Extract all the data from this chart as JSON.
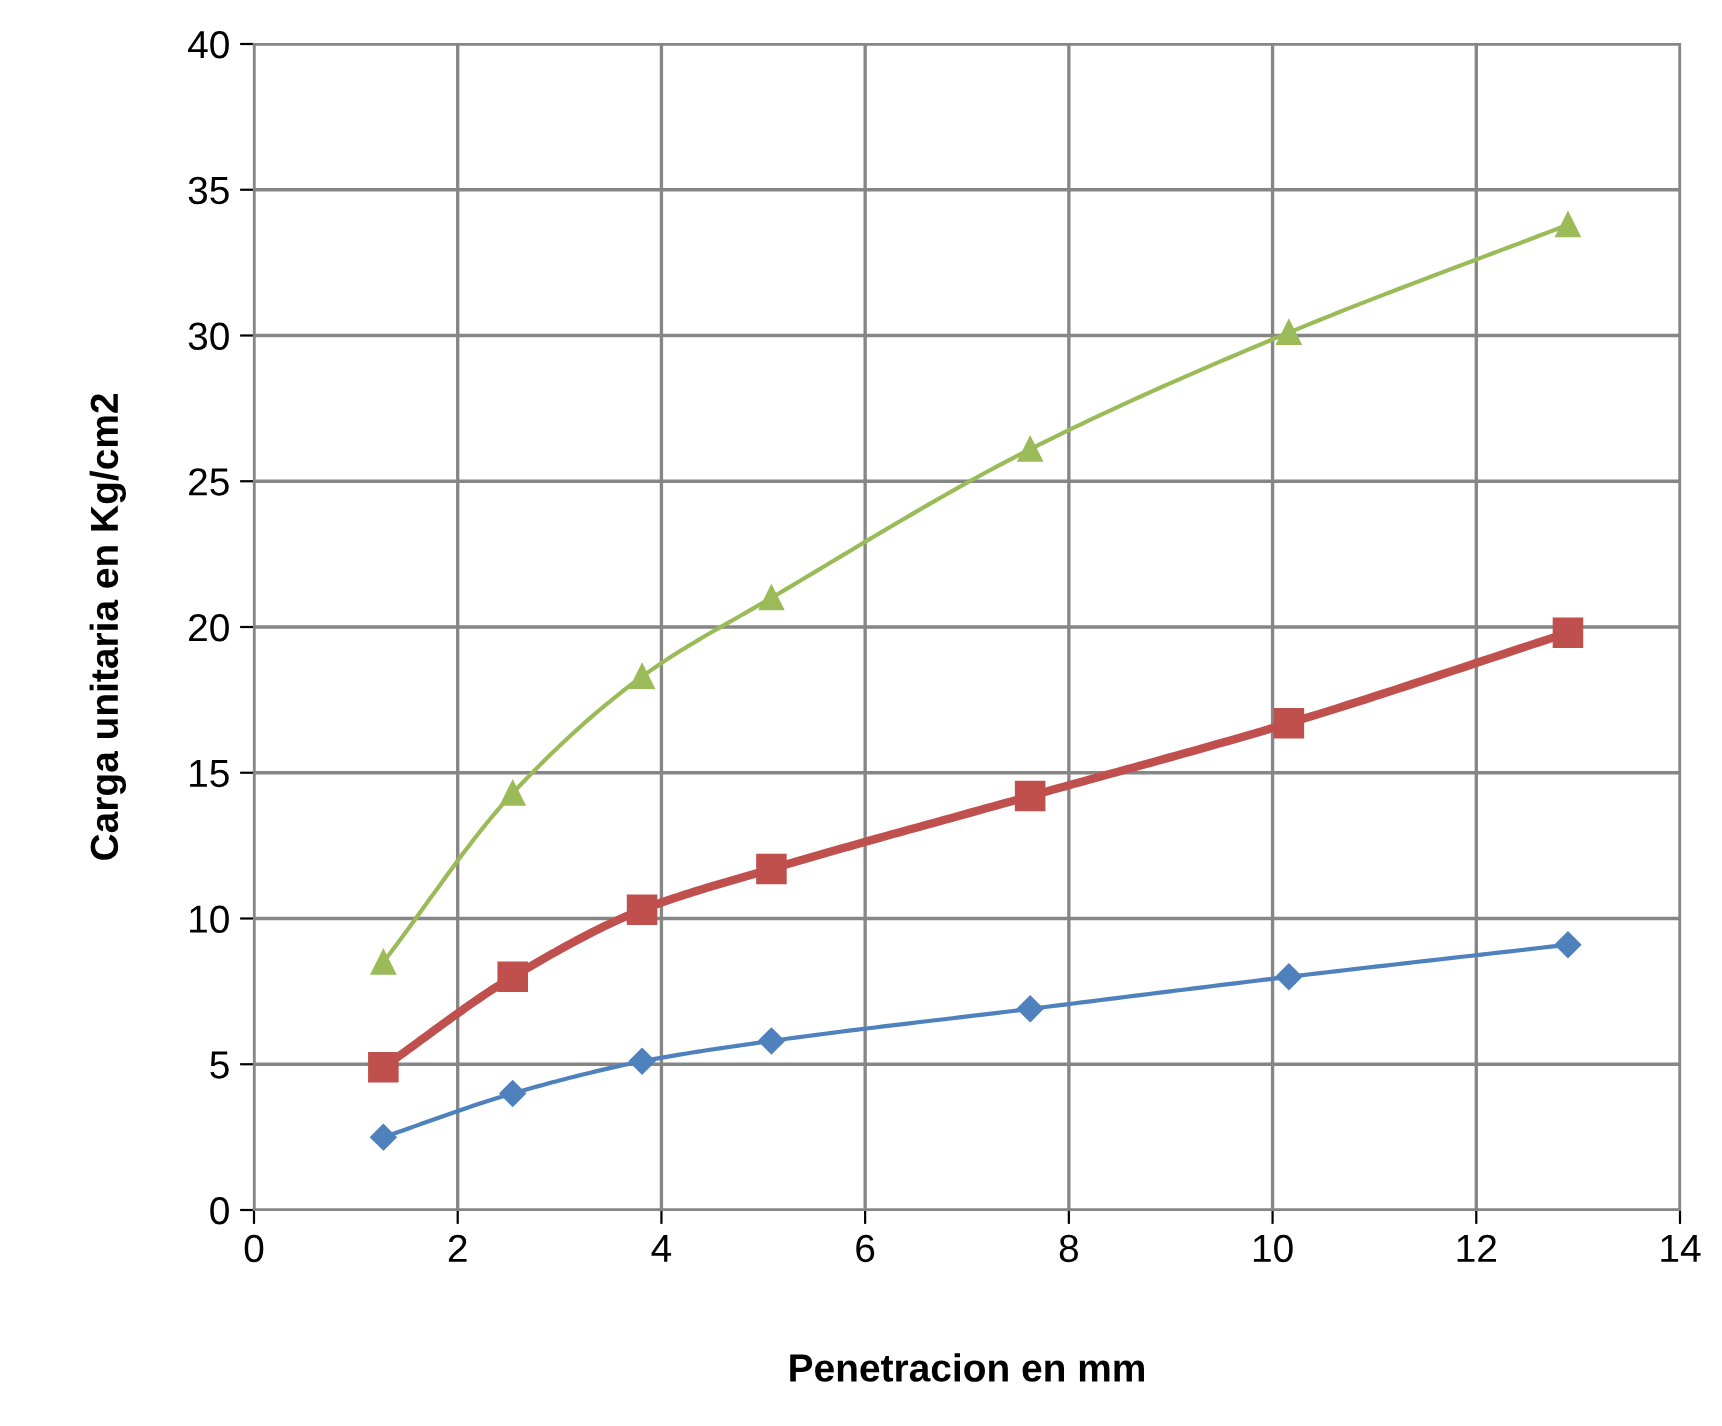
{
  "chart_data": {
    "type": "line",
    "xlabel": "Penetracion en mm",
    "ylabel": "Carga unitaria en Kg/cm2",
    "x": [
      1.27,
      2.54,
      3.81,
      5.08,
      7.62,
      10.16,
      12.9
    ],
    "series": [
      {
        "color": "#4f81bd",
        "marker": "diamond",
        "values": [
          2.5,
          4.0,
          5.1,
          5.8,
          6.9,
          8.0,
          9.1
        ]
      },
      {
        "color": "#c0504d",
        "marker": "square",
        "values": [
          4.9,
          8.0,
          10.3,
          11.7,
          14.2,
          16.7,
          19.8
        ]
      },
      {
        "color": "#9bbb59",
        "marker": "triangle",
        "values": [
          8.5,
          14.3,
          18.3,
          21.0,
          26.1,
          30.1,
          33.8
        ]
      }
    ],
    "xlim": [
      0,
      14
    ],
    "xticks": [
      0,
      2,
      4,
      6,
      8,
      10,
      12,
      14
    ],
    "ylim": [
      0,
      40
    ],
    "yticks": [
      0,
      5,
      10,
      15,
      20,
      25,
      30,
      35,
      40
    ],
    "grid": true,
    "line_style": "solid"
  }
}
